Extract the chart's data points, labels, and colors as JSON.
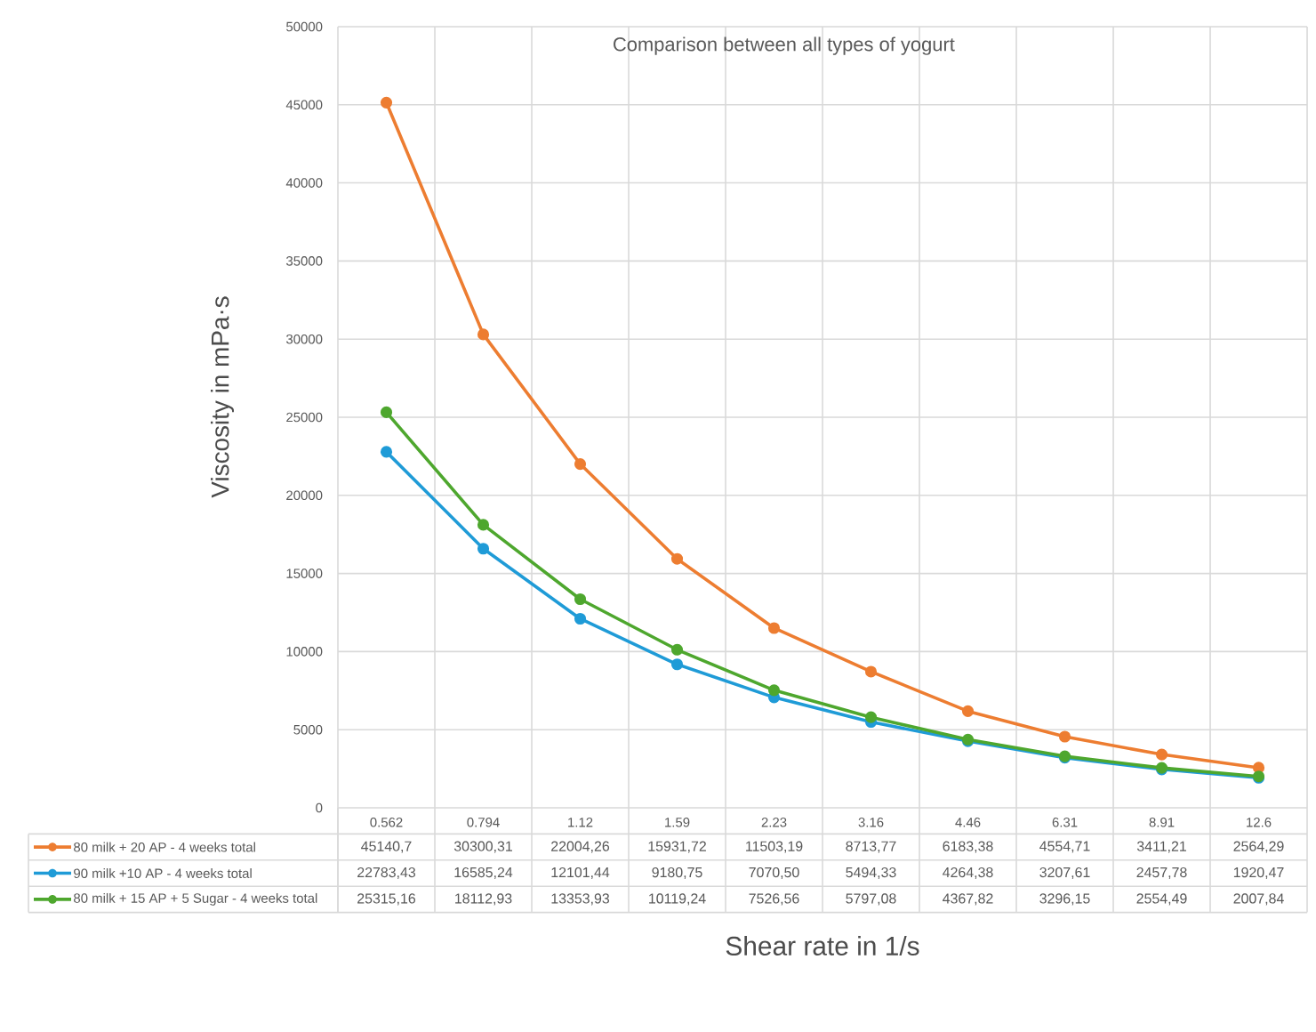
{
  "chart_data": {
    "type": "line",
    "title": "Comparison between all types of yogurt",
    "xlabel": "Shear rate in 1/s",
    "ylabel": "Viscosity in mPa·s",
    "categories": [
      "0.562",
      "0.794",
      "1.12",
      "1.59",
      "2.23",
      "3.16",
      "4.46",
      "6.31",
      "8.91",
      "12.6"
    ],
    "series": [
      {
        "name": "80 milk + 20 AP - 4 weeks total",
        "color": "#ed7d31",
        "values": [
          45140.7,
          30300.31,
          22004.26,
          15931.72,
          11503.19,
          8713.77,
          6183.38,
          4554.71,
          3411.21,
          2564.29
        ],
        "value_labels": [
          "45140,7",
          "30300,31",
          "22004,26",
          "15931,72",
          "11503,19",
          "8713,77",
          "6183,38",
          "4554,71",
          "3411,21",
          "2564,29"
        ]
      },
      {
        "name": "90 milk  +10 AP - 4 weeks total",
        "color": "#1f9bd7",
        "values": [
          22783.43,
          16585.24,
          12101.44,
          9180.75,
          7070.5,
          5494.33,
          4264.38,
          3207.61,
          2457.78,
          1920.47
        ],
        "value_labels": [
          "22783,43",
          "16585,24",
          "12101,44",
          "9180,75",
          "7070,50",
          "5494,33",
          "4264,38",
          "3207,61",
          "2457,78",
          "1920,47"
        ]
      },
      {
        "name": "80 milk + 15 AP + 5 Sugar - 4 weeks total",
        "color": "#4ea72e",
        "values": [
          25315.16,
          18112.93,
          13353.93,
          10119.24,
          7526.56,
          5797.08,
          4367.82,
          3296.15,
          2554.49,
          2007.84
        ],
        "value_labels": [
          "25315,16",
          "18112,93",
          "13353,93",
          "10119,24",
          "7526,56",
          "5797,08",
          "4367,82",
          "3296,15",
          "2554,49",
          "2007,84"
        ]
      }
    ],
    "ylim": [
      0,
      50000
    ],
    "yticks": [
      0,
      5000,
      10000,
      15000,
      20000,
      25000,
      30000,
      35000,
      40000,
      45000,
      50000
    ],
    "grid": true,
    "legend": "bottom",
    "marker": "circle",
    "line_style": "solid"
  }
}
